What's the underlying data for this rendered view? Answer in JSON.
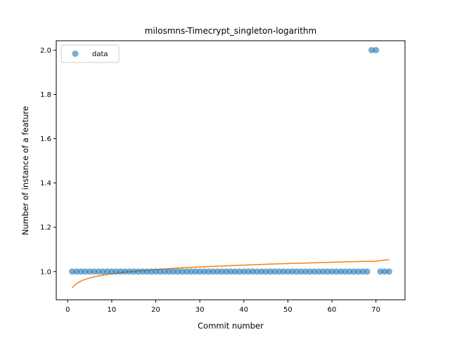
{
  "chart_data": {
    "type": "scatter",
    "title": "milosmns-Timecrypt_singleton-logarithm",
    "xlabel": "Commit number",
    "ylabel": "Number of instance of a feature",
    "xlim": [
      -2.6,
      76.6
    ],
    "ylim": [
      0.8725,
      2.0425
    ],
    "xticks": [
      0,
      10,
      20,
      30,
      40,
      50,
      60,
      70
    ],
    "yticks": [
      1.0,
      1.2,
      1.4,
      1.6,
      1.8,
      2.0
    ],
    "xtick_labels": [
      "0",
      "10",
      "20",
      "30",
      "40",
      "50",
      "60",
      "70"
    ],
    "ytick_labels": [
      "1.0",
      "1.2",
      "1.4",
      "1.6",
      "1.8",
      "2.0"
    ],
    "legend": {
      "position": "top-left",
      "entries": [
        "data"
      ]
    },
    "grid": false,
    "series": [
      {
        "name": "data",
        "kind": "scatter",
        "color": "#1f77b4",
        "x": [
          1,
          2,
          3,
          4,
          5,
          6,
          7,
          8,
          9,
          10,
          11,
          12,
          13,
          14,
          15,
          16,
          17,
          18,
          19,
          20,
          21,
          22,
          23,
          24,
          25,
          26,
          27,
          28,
          29,
          30,
          31,
          32,
          33,
          34,
          35,
          36,
          37,
          38,
          39,
          40,
          41,
          42,
          43,
          44,
          45,
          46,
          47,
          48,
          49,
          50,
          51,
          52,
          53,
          54,
          55,
          56,
          57,
          58,
          59,
          60,
          61,
          62,
          63,
          64,
          65,
          66,
          67,
          68,
          69,
          70,
          71,
          72,
          73
        ],
        "y": [
          1,
          1,
          1,
          1,
          1,
          1,
          1,
          1,
          1,
          1,
          1,
          1,
          1,
          1,
          1,
          1,
          1,
          1,
          1,
          1,
          1,
          1,
          1,
          1,
          1,
          1,
          1,
          1,
          1,
          1,
          1,
          1,
          1,
          1,
          1,
          1,
          1,
          1,
          1,
          1,
          1,
          1,
          1,
          1,
          1,
          1,
          1,
          1,
          1,
          1,
          1,
          1,
          1,
          1,
          1,
          1,
          1,
          1,
          1,
          1,
          1,
          1,
          1,
          1,
          1,
          1,
          1,
          1,
          2,
          2,
          1,
          1,
          1
        ]
      },
      {
        "kind": "line",
        "color": "#ff7f0e",
        "x": [
          1,
          2,
          3,
          4,
          5,
          6,
          8,
          10,
          12,
          15,
          18,
          20,
          25,
          30,
          35,
          40,
          45,
          50,
          55,
          60,
          65,
          70,
          73
        ],
        "y": [
          0.927,
          0.946,
          0.957,
          0.965,
          0.971,
          0.976,
          0.984,
          0.99,
          0.995,
          1.001,
          1.006,
          1.009,
          1.016,
          1.021,
          1.025,
          1.029,
          1.033,
          1.036,
          1.039,
          1.042,
          1.045,
          1.047,
          1.054
        ]
      }
    ]
  }
}
